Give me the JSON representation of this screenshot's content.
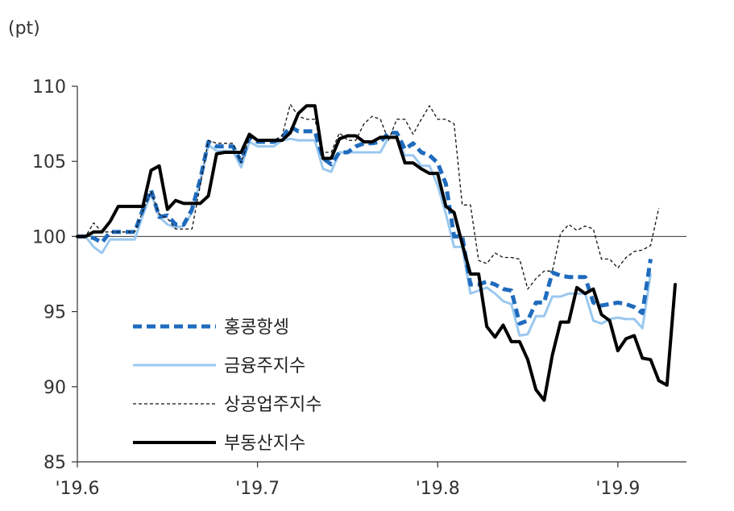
{
  "chart_data": {
    "type": "line",
    "title": "",
    "unit_label": "(pt)",
    "xlabel": "",
    "ylabel": "",
    "ylim": [
      85,
      110
    ],
    "yticks": [
      85,
      90,
      95,
      100,
      105,
      110
    ],
    "ytick_labels": [
      "85",
      "90",
      "95",
      "100",
      "105",
      "110"
    ],
    "xtick_labels": [
      "'19.6",
      "'19.7",
      "'19.8",
      "'19.9"
    ],
    "xtick_index": [
      0,
      22,
      44,
      66
    ],
    "reference_line": 100,
    "legend_position": "lower-left",
    "series": [
      {
        "name": "홍콩항셍",
        "color": "#1f6bbd",
        "style": "bold-dashed",
        "values": [
          100,
          100,
          99.9,
          99.6,
          100.3,
          100.3,
          100.3,
          100.3,
          101.8,
          103.1,
          101.3,
          101.4,
          100.8,
          100.8,
          101.8,
          103.8,
          106.3,
          106,
          106,
          106,
          105,
          106.6,
          106.3,
          106.3,
          106.3,
          106.6,
          107.3,
          107,
          107,
          107,
          105.2,
          104.8,
          105.6,
          105.6,
          106,
          106.2,
          106.2,
          106.3,
          106.9,
          106.9,
          105.8,
          106.2,
          105.6,
          105.4,
          104.9,
          103.5,
          100,
          100,
          96.8,
          96.8,
          97,
          96.8,
          96.5,
          96.4,
          94.2,
          94.4,
          95.6,
          95.6,
          97.6,
          97.4,
          97.3,
          97.3,
          97.3,
          95.6,
          95.4,
          95.5,
          95.6,
          95.5,
          95.3,
          94.9,
          98.5
        ]
      },
      {
        "name": "금융주지수",
        "color": "#9ac8ef",
        "style": "solid",
        "values": [
          100,
          100,
          99.3,
          98.9,
          99.8,
          99.8,
          99.8,
          99.8,
          101.4,
          102.9,
          101.3,
          100.8,
          100.6,
          100.7,
          101.6,
          103.7,
          106.1,
          105.7,
          105.7,
          105.7,
          104.6,
          106.3,
          106,
          106,
          106,
          106.4,
          106.5,
          106.4,
          106.4,
          106.4,
          104.5,
          104.3,
          105.6,
          105.6,
          105.6,
          105.6,
          105.6,
          105.6,
          106.6,
          106.6,
          105.4,
          105.4,
          104.7,
          104.7,
          103.4,
          101.5,
          99.3,
          99.3,
          96.2,
          96.4,
          96.6,
          96.2,
          95.7,
          95.5,
          93.4,
          93.5,
          94.7,
          94.7,
          96,
          96,
          96.2,
          96.2,
          96.2,
          94.4,
          94.2,
          94.5,
          94.6,
          94.5,
          94.5,
          93.9,
          97.5
        ]
      },
      {
        "name": "상공업주지수",
        "color": "#111111",
        "style": "thin-dotted",
        "values": [
          100,
          100,
          100.9,
          100.3,
          100.3,
          100.3,
          100.3,
          100.3,
          101.7,
          103,
          101.5,
          101.2,
          100.5,
          100.5,
          100.5,
          103.4,
          106.4,
          106.2,
          106.2,
          106.2,
          104.9,
          106.6,
          106.4,
          106.4,
          106.4,
          106.7,
          108.8,
          108,
          107.8,
          107.8,
          105.6,
          105.6,
          106.9,
          106.4,
          106.4,
          107.5,
          108,
          107.8,
          106.4,
          107.8,
          107.8,
          106.8,
          107.8,
          108.7,
          107.8,
          107.8,
          107.5,
          102.1,
          102.1,
          98.4,
          98.2,
          98.9,
          98.6,
          98.6,
          98.5,
          96.5,
          97.2,
          97.7,
          97.7,
          100.2,
          100.8,
          100.4,
          100.7,
          100.5,
          98.5,
          98.5,
          97.9,
          98.6,
          99,
          99.1,
          99.4,
          101.9
        ]
      },
      {
        "name": "부동산지수",
        "color": "#000000",
        "style": "bold-solid",
        "values": [
          100,
          100,
          100.3,
          100.3,
          101,
          102,
          102,
          102,
          102,
          104.4,
          104.7,
          101.8,
          102.4,
          102.2,
          102.2,
          102.2,
          102.7,
          105.5,
          105.6,
          105.6,
          105.6,
          106.8,
          106.4,
          106.4,
          106.4,
          106.4,
          106.9,
          108.2,
          108.7,
          108.7,
          105.2,
          105.2,
          106.5,
          106.7,
          106.7,
          106.3,
          106.3,
          106.6,
          106.6,
          106.6,
          104.9,
          104.9,
          104.5,
          104.2,
          104.2,
          102,
          101.6,
          99.5,
          97.5,
          97.5,
          94,
          93.3,
          94.1,
          93,
          93,
          91.8,
          89.8,
          89.1,
          92.1,
          94.3,
          94.3,
          96.6,
          96.2,
          96.5,
          94.8,
          94.4,
          92.4,
          93.2,
          93.4,
          91.9,
          91.8,
          90.4,
          90.1,
          96.8
        ]
      }
    ]
  }
}
